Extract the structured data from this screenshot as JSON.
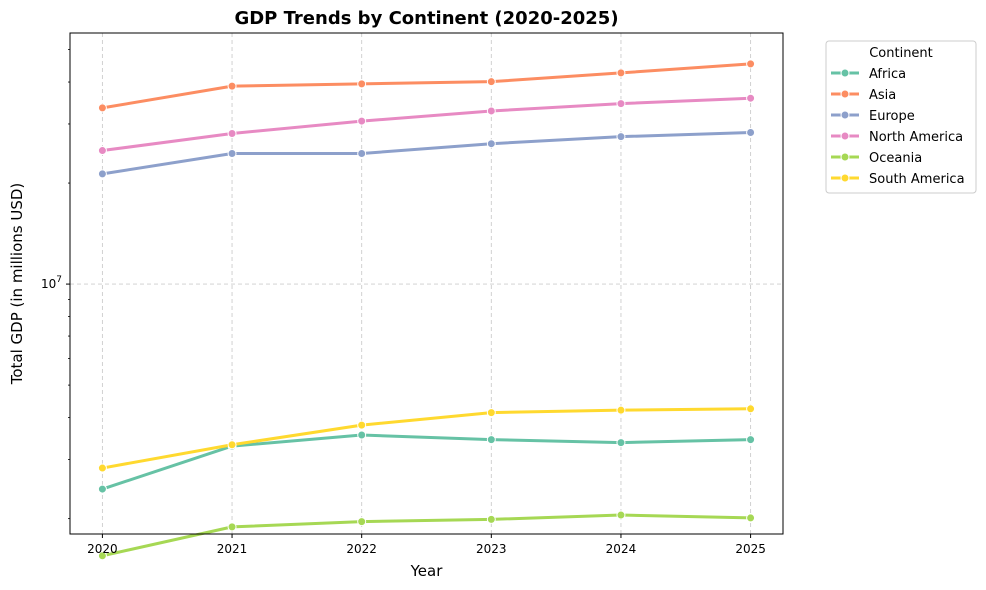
{
  "chart_data": {
    "type": "line",
    "title": "GDP Trends by Continent (2020-2025)",
    "xlabel": "Year",
    "ylabel": "Total GDP (in millions USD)",
    "yscale": "log",
    "ylim": [
      1800000,
      56000000
    ],
    "xlim": [
      2019.75,
      2025.25
    ],
    "yticks": [
      {
        "value": 10000000,
        "label": "10^7"
      }
    ],
    "grid": true,
    "legend": {
      "title": "Continent",
      "placement": "outside-top-right"
    },
    "x": [
      2020,
      2021,
      2022,
      2023,
      2024,
      2025
    ],
    "series": [
      {
        "name": "Africa",
        "color": "#66c2a5",
        "values": [
          2450000,
          3290000,
          3550000,
          3440000,
          3370000,
          3440000
        ]
      },
      {
        "name": "Asia",
        "color": "#fc8d62",
        "values": [
          33500000,
          38900000,
          39500000,
          40100000,
          42600000,
          45300000
        ]
      },
      {
        "name": "Europe",
        "color": "#8da0cb",
        "values": [
          21300000,
          24500000,
          24500000,
          26200000,
          27500000,
          28300000
        ]
      },
      {
        "name": "North America",
        "color": "#e78ac3",
        "values": [
          25000000,
          28100000,
          30600000,
          32800000,
          34500000,
          35800000
        ]
      },
      {
        "name": "Oceania",
        "color": "#a6d854",
        "values": [
          1550000,
          1890000,
          1960000,
          1990000,
          2050000,
          2010000
        ]
      },
      {
        "name": "South America",
        "color": "#ffd92f",
        "values": [
          2830000,
          3320000,
          3800000,
          4140000,
          4210000,
          4250000
        ]
      }
    ]
  }
}
